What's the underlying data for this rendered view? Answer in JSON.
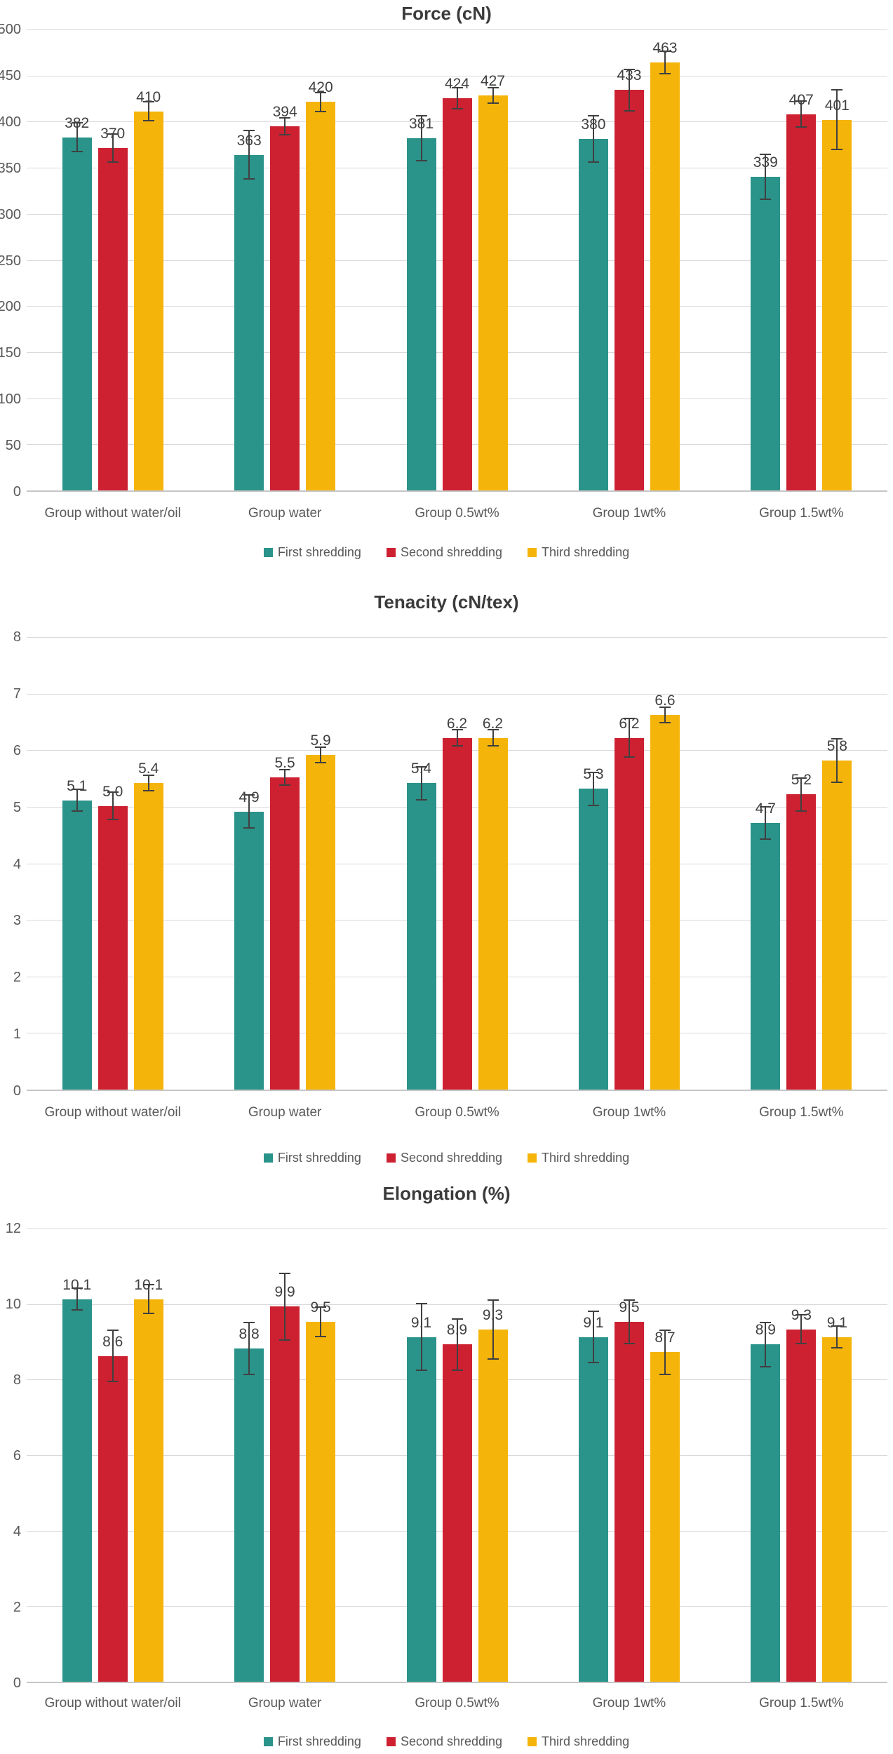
{
  "colors": {
    "first_shredding": "#2a938a",
    "second_shredding": "#cd2132",
    "third_shredding": "#f5b40a",
    "title_text": "#3b3b3b",
    "axis_text": "#595959",
    "value_label_text": "#404040",
    "gridline": "#d9d9d9",
    "axis_line": "#c6c6c6",
    "error_bar": "#404040",
    "background": "#ffffff"
  },
  "chart_data": [
    {
      "type": "bar",
      "title": "Force (cN)",
      "categories": [
        "Group without water/oil",
        "Group water",
        "Group 0.5wt%",
        "Group 1wt%",
        "Group 1.5wt%"
      ],
      "series": [
        {
          "name": "First shredding",
          "color": "#2a938a",
          "values": [
            382,
            363,
            381,
            380,
            339
          ],
          "errors": [
            16,
            27,
            25,
            26,
            25
          ]
        },
        {
          "name": "Second shredding",
          "color": "#cd2132",
          "values": [
            370,
            394,
            424,
            433,
            407
          ],
          "errors": [
            16,
            10,
            12,
            23,
            15
          ]
        },
        {
          "name": "Third shredding",
          "color": "#f5b40a",
          "values": [
            410,
            420,
            427,
            463,
            401
          ],
          "errors": [
            11,
            11,
            9,
            13,
            33
          ]
        }
      ],
      "ylim": [
        0,
        500
      ],
      "ytick_step": 50,
      "decimals": 0,
      "grid": true,
      "legend_position": "bottom",
      "value_labels": true,
      "error_bars": true
    },
    {
      "type": "bar",
      "title": "Tenacity (cN/tex)",
      "categories": [
        "Group without water/oil",
        "Group water",
        "Group 0.5wt%",
        "Group 1wt%",
        "Group 1.5wt%"
      ],
      "series": [
        {
          "name": "First shredding",
          "color": "#2a938a",
          "values": [
            5.1,
            4.9,
            5.4,
            5.3,
            4.7
          ],
          "errors": [
            0.2,
            0.3,
            0.3,
            0.3,
            0.3
          ]
        },
        {
          "name": "Second shredding",
          "color": "#cd2132",
          "values": [
            5.0,
            5.5,
            6.2,
            6.2,
            5.2
          ],
          "errors": [
            0.25,
            0.15,
            0.15,
            0.35,
            0.3
          ]
        },
        {
          "name": "Third shredding",
          "color": "#f5b40a",
          "values": [
            5.4,
            5.9,
            6.2,
            6.6,
            5.8
          ],
          "errors": [
            0.15,
            0.15,
            0.15,
            0.15,
            0.4
          ]
        }
      ],
      "ylim": [
        0,
        8
      ],
      "ytick_step": 1,
      "decimals": 1,
      "grid": true,
      "legend_position": "bottom",
      "value_labels": true,
      "error_bars": true
    },
    {
      "type": "bar",
      "title": "Elongation (%)",
      "categories": [
        "Group without water/oil",
        "Group water",
        "Group 0.5wt%",
        "Group 1wt%",
        "Group 1.5wt%"
      ],
      "series": [
        {
          "name": "First shredding",
          "color": "#2a938a",
          "values": [
            10.1,
            8.8,
            9.1,
            9.1,
            8.9
          ],
          "errors": [
            0.3,
            0.7,
            0.9,
            0.7,
            0.6
          ]
        },
        {
          "name": "Second shredding",
          "color": "#cd2132",
          "values": [
            8.6,
            9.9,
            8.9,
            9.5,
            9.3
          ],
          "errors": [
            0.7,
            0.9,
            0.7,
            0.6,
            0.4
          ]
        },
        {
          "name": "Third shredding",
          "color": "#f5b40a",
          "values": [
            10.1,
            9.5,
            9.3,
            8.7,
            9.1
          ],
          "errors": [
            0.4,
            0.4,
            0.8,
            0.6,
            0.3
          ]
        }
      ],
      "ylim": [
        0,
        12
      ],
      "ytick_step": 2,
      "decimals": 1,
      "grid": true,
      "legend_position": "bottom",
      "value_labels": true,
      "error_bars": true
    }
  ]
}
